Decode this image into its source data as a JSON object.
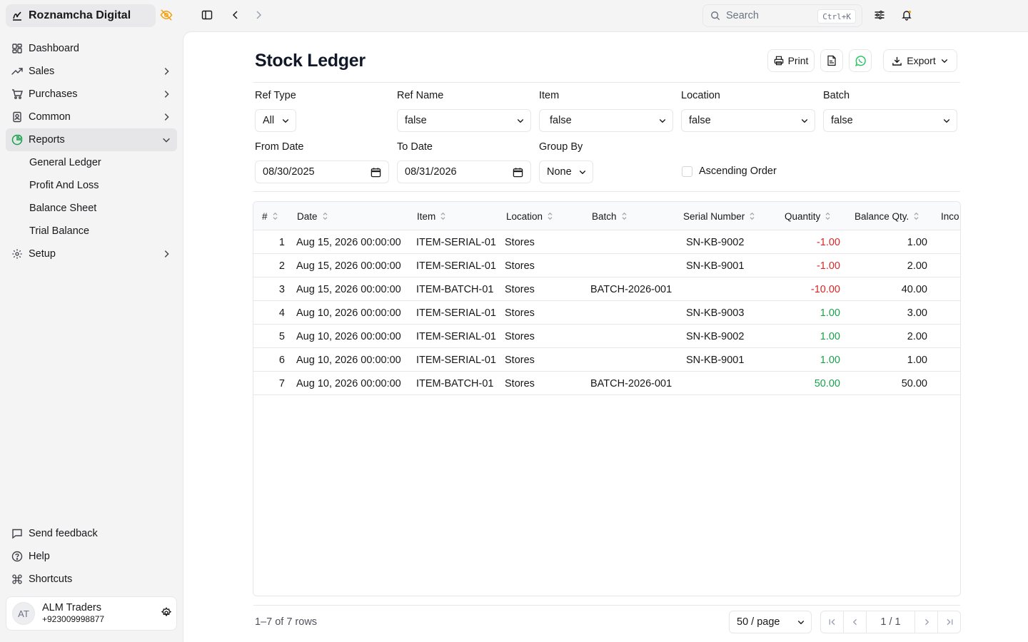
{
  "brand": {
    "name": "Roznamcha Digital"
  },
  "nav": {
    "dashboard": "Dashboard",
    "sales": "Sales",
    "purchases": "Purchases",
    "common": "Common",
    "reports": "Reports",
    "reports_sub": [
      "General Ledger",
      "Profit And Loss",
      "Balance Sheet",
      "Trial Balance"
    ],
    "setup": "Setup"
  },
  "bottom_nav": {
    "feedback": "Send feedback",
    "help": "Help",
    "shortcuts": "Shortcuts"
  },
  "user": {
    "initials": "AT",
    "name": "ALM Traders",
    "phone": "+923009998877"
  },
  "search": {
    "placeholder": "Search",
    "shortcut": "Ctrl+K"
  },
  "page": {
    "title": "Stock Ledger",
    "print_label": "Print",
    "export_label": "Export"
  },
  "filters": {
    "ref_type": {
      "label": "Ref Type",
      "value": "All"
    },
    "ref_name": {
      "label": "Ref Name",
      "value": "false"
    },
    "item": {
      "label": "Item",
      "value": "false"
    },
    "location": {
      "label": "Location",
      "value": "false"
    },
    "batch": {
      "label": "Batch",
      "value": "false"
    },
    "from_date": {
      "label": "From Date",
      "value": "08/30/2025"
    },
    "to_date": {
      "label": "To Date",
      "value": "08/31/2026"
    },
    "group_by": {
      "label": "Group By",
      "value": "None"
    },
    "ascending": {
      "label": "Ascending Order",
      "checked": false
    }
  },
  "table": {
    "columns": [
      "#",
      "Date",
      "Item",
      "Location",
      "Batch",
      "Serial Number",
      "Quantity",
      "Balance Qty.",
      "Inco"
    ],
    "rows": [
      {
        "n": "1",
        "date": "Aug 15, 2026 00:00:00",
        "item": "ITEM-SERIAL-01",
        "location": "Stores",
        "batch": "",
        "serial": "SN-KB-9002",
        "qty": "-1.00",
        "balance": "1.00"
      },
      {
        "n": "2",
        "date": "Aug 15, 2026 00:00:00",
        "item": "ITEM-SERIAL-01",
        "location": "Stores",
        "batch": "",
        "serial": "SN-KB-9001",
        "qty": "-1.00",
        "balance": "2.00"
      },
      {
        "n": "3",
        "date": "Aug 15, 2026 00:00:00",
        "item": "ITEM-BATCH-01",
        "location": "Stores",
        "batch": "BATCH-2026-001",
        "serial": "",
        "qty": "-10.00",
        "balance": "40.00"
      },
      {
        "n": "4",
        "date": "Aug 10, 2026 00:00:00",
        "item": "ITEM-SERIAL-01",
        "location": "Stores",
        "batch": "",
        "serial": "SN-KB-9003",
        "qty": "1.00",
        "balance": "3.00"
      },
      {
        "n": "5",
        "date": "Aug 10, 2026 00:00:00",
        "item": "ITEM-SERIAL-01",
        "location": "Stores",
        "batch": "",
        "serial": "SN-KB-9002",
        "qty": "1.00",
        "balance": "2.00"
      },
      {
        "n": "6",
        "date": "Aug 10, 2026 00:00:00",
        "item": "ITEM-SERIAL-01",
        "location": "Stores",
        "batch": "",
        "serial": "SN-KB-9001",
        "qty": "1.00",
        "balance": "1.00"
      },
      {
        "n": "7",
        "date": "Aug 10, 2026 00:00:00",
        "item": "ITEM-BATCH-01",
        "location": "Stores",
        "batch": "BATCH-2026-001",
        "serial": "",
        "qty": "50.00",
        "balance": "50.00"
      }
    ]
  },
  "footer": {
    "rows_info": "1–7 of 7 rows",
    "per_page": "50 / page",
    "page_info": "1 / 1"
  },
  "colors": {
    "negative": "#dc2626",
    "positive": "#16a34a",
    "brand_icon": "#f59e0b",
    "whatsapp": "#22c55e"
  }
}
